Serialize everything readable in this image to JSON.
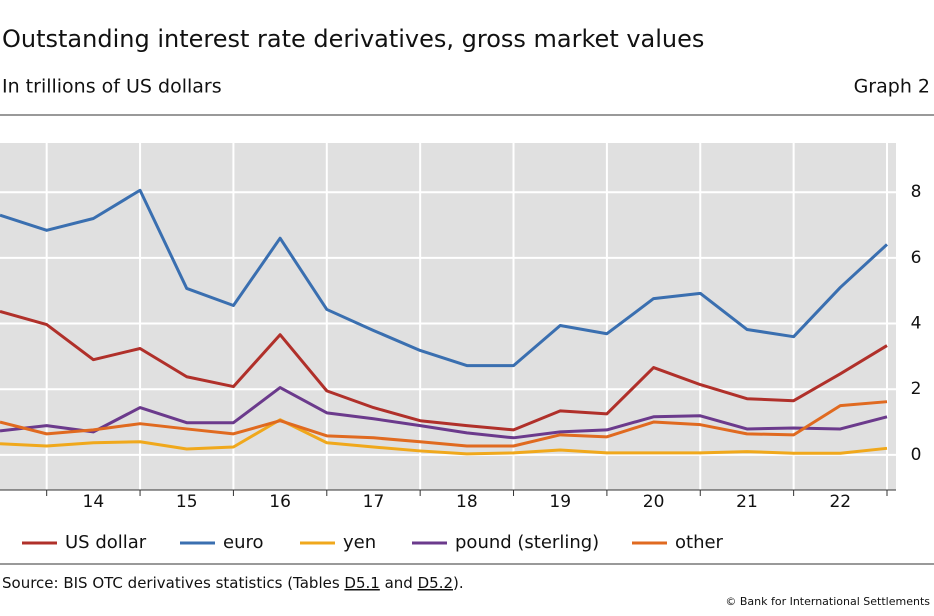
{
  "chart_data": {
    "type": "line",
    "title": "Outstanding interest rate derivatives, gross market values",
    "subtitle": "In trillions of US dollars",
    "graph_label": "Graph 2",
    "source": [
      "Source: BIS OTC derivatives statistics (Tables ",
      "D5.1",
      " and ",
      "D5.2",
      ")."
    ],
    "copyright": "© Bank for International Settlements",
    "categories": [
      null,
      null,
      "14",
      null,
      "15",
      null,
      "16",
      null,
      "17",
      null,
      "18",
      null,
      "19",
      null,
      "20",
      null,
      "21",
      null,
      "22",
      null
    ],
    "series": [
      {
        "name": "US dollar",
        "color": "#b0302a",
        "values": [
          4.37,
          3.97,
          2.9,
          3.24,
          2.38,
          2.08,
          3.66,
          1.95,
          1.44,
          1.04,
          0.89,
          0.76,
          1.34,
          1.25,
          2.66,
          2.14,
          1.71,
          1.65,
          2.47,
          3.33
        ]
      },
      {
        "name": "euro",
        "color": "#3a6fb0",
        "values": [
          7.3,
          6.84,
          7.2,
          8.06,
          5.07,
          4.55,
          6.6,
          4.43,
          3.79,
          3.18,
          2.72,
          2.72,
          3.94,
          3.69,
          4.76,
          4.92,
          3.82,
          3.6,
          5.1,
          6.41
        ]
      },
      {
        "name": "yen",
        "color": "#f0a81c",
        "values": [
          0.34,
          0.27,
          0.37,
          0.4,
          0.18,
          0.24,
          1.07,
          0.37,
          0.24,
          0.12,
          0.03,
          0.06,
          0.15,
          0.06,
          0.06,
          0.06,
          0.1,
          0.05,
          0.05,
          0.2
        ]
      },
      {
        "name": "pound (sterling)",
        "color": "#6b3a8c",
        "values": [
          0.73,
          0.89,
          0.7,
          1.44,
          0.98,
          0.98,
          2.05,
          1.28,
          1.1,
          0.89,
          0.67,
          0.52,
          0.7,
          0.76,
          1.16,
          1.19,
          0.79,
          0.82,
          0.79,
          1.16
        ]
      },
      {
        "name": "other",
        "color": "#e06a20",
        "values": [
          1.0,
          0.64,
          0.76,
          0.95,
          0.79,
          0.64,
          1.04,
          0.58,
          0.52,
          0.4,
          0.27,
          0.27,
          0.61,
          0.55,
          1.0,
          0.92,
          0.64,
          0.61,
          1.5,
          1.62
        ]
      }
    ],
    "ylim": [
      -1.07,
      9.5
    ],
    "yticks": [
      0,
      2,
      4,
      6,
      8
    ],
    "grid": true
  }
}
